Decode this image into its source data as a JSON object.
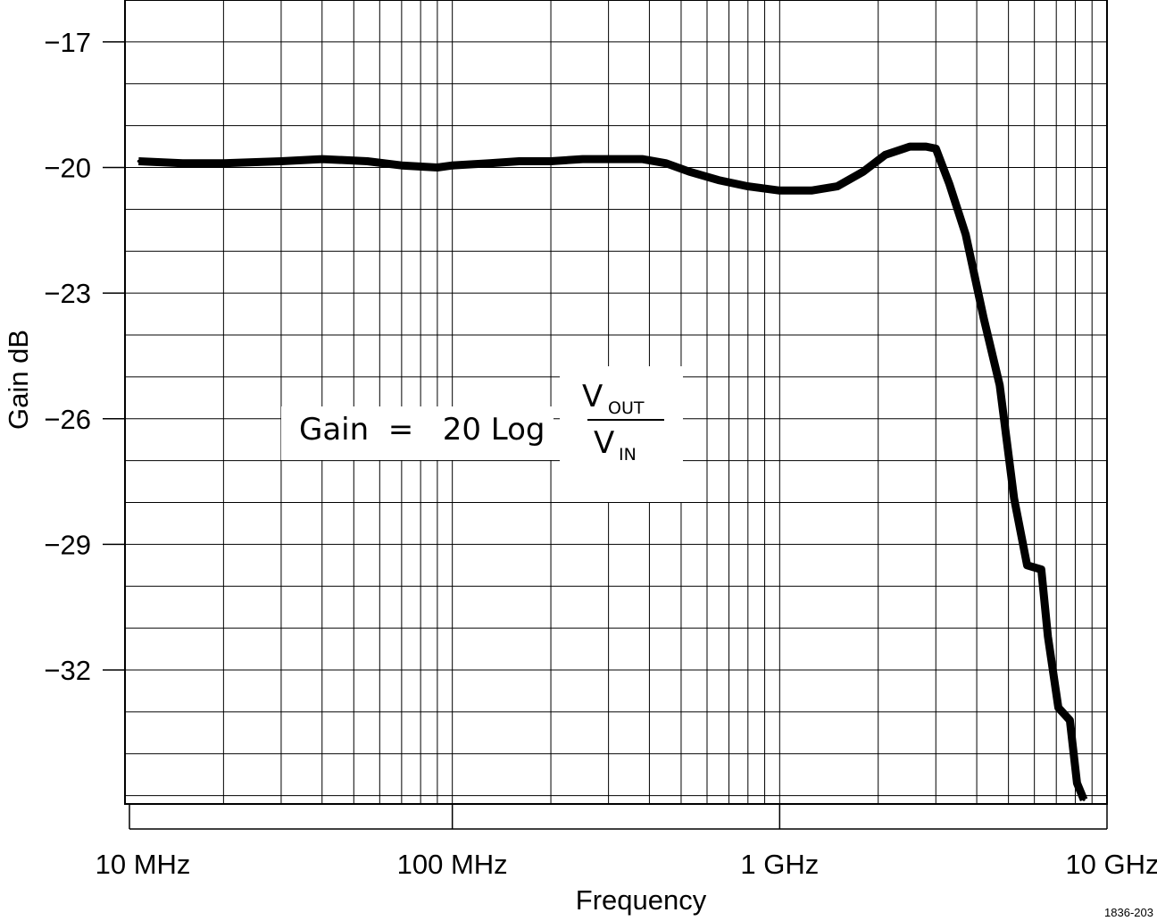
{
  "chart_data": {
    "type": "line",
    "xscale": "log",
    "xlim": [
      10000000,
      10000000000
    ],
    "ylim": [
      -35.2,
      -16.0
    ],
    "xlabel": "Frequency",
    "ylabel": "Gain dB",
    "grid": true,
    "x_ticks": [
      {
        "value": 10000000,
        "label": "10 MHz"
      },
      {
        "value": 100000000,
        "label": "100 MHz"
      },
      {
        "value": 1000000000,
        "label": "1 GHz"
      },
      {
        "value": 10000000000,
        "label": "10 GHz"
      }
    ],
    "y_ticks": [
      {
        "value": -17,
        "label": "−17"
      },
      {
        "value": -20,
        "label": "−20"
      },
      {
        "value": -23,
        "label": "−23"
      },
      {
        "value": -26,
        "label": "−26"
      },
      {
        "value": -29,
        "label": "−29"
      },
      {
        "value": -32,
        "label": "−32"
      }
    ],
    "series": [
      {
        "points": [
          [
            11000000,
            -19.85
          ],
          [
            15000000,
            -19.9
          ],
          [
            20000000,
            -19.9
          ],
          [
            30000000,
            -19.85
          ],
          [
            40000000,
            -19.8
          ],
          [
            55000000,
            -19.85
          ],
          [
            70000000,
            -19.95
          ],
          [
            90000000,
            -20.0
          ],
          [
            100000000,
            -19.95
          ],
          [
            130000000,
            -19.9
          ],
          [
            160000000,
            -19.85
          ],
          [
            200000000,
            -19.85
          ],
          [
            250000000,
            -19.8
          ],
          [
            300000000,
            -19.8
          ],
          [
            380000000,
            -19.8
          ],
          [
            450000000,
            -19.9
          ],
          [
            530000000,
            -20.1
          ],
          [
            650000000,
            -20.3
          ],
          [
            800000000,
            -20.45
          ],
          [
            1000000000,
            -20.55
          ],
          [
            1250000000,
            -20.55
          ],
          [
            1500000000,
            -20.45
          ],
          [
            1800000000,
            -20.1
          ],
          [
            2100000000,
            -19.7
          ],
          [
            2500000000,
            -19.5
          ],
          [
            2800000000,
            -19.5
          ],
          [
            3000000000,
            -19.55
          ],
          [
            3300000000,
            -20.4
          ],
          [
            3700000000,
            -21.6
          ],
          [
            4200000000,
            -23.6
          ],
          [
            4700000000,
            -25.2
          ],
          [
            5200000000,
            -27.9
          ],
          [
            5700000000,
            -29.5
          ],
          [
            6300000000,
            -29.6
          ],
          [
            6600000000,
            -31.2
          ],
          [
            7100000000,
            -32.9
          ],
          [
            7700000000,
            -33.2
          ],
          [
            8100000000,
            -34.7
          ],
          [
            8500000000,
            -35.1
          ]
        ]
      }
    ]
  },
  "formula": {
    "lhs": "Gain  =   20 Log",
    "numerator_main": "V",
    "numerator_sub": "OUT",
    "denominator_main": "V",
    "denominator_sub": "IN"
  },
  "figure_id": "1836-203"
}
